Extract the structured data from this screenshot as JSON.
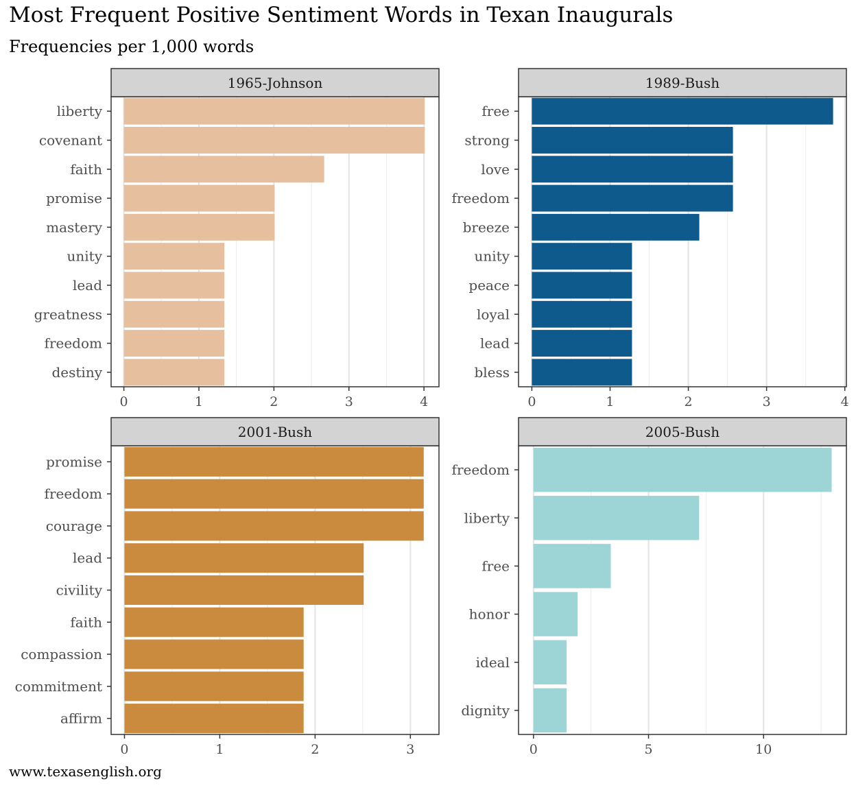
{
  "title": "Most Frequent Positive Sentiment Words in Texan Inaugurals",
  "subtitle": "Frequencies per 1,000 words",
  "caption": "www.texasenglish.org",
  "chart_data": [
    {
      "type": "bar",
      "orientation": "horizontal",
      "panel": "1965-Johnson",
      "color": "#E6BF9F",
      "categories": [
        "liberty",
        "covenant",
        "faith",
        "promise",
        "mastery",
        "unity",
        "lead",
        "greatness",
        "freedom",
        "destiny"
      ],
      "values": [
        4.01,
        4.01,
        2.67,
        2.01,
        2.01,
        1.34,
        1.34,
        1.34,
        1.34,
        1.34
      ],
      "xlim": [
        -0.17,
        4.2
      ],
      "xticks": [
        0,
        1,
        2,
        3,
        4
      ]
    },
    {
      "type": "bar",
      "orientation": "horizontal",
      "panel": "1989-Bush",
      "color": "#0F5A8C",
      "categories": [
        "free",
        "strong",
        "love",
        "freedom",
        "breeze",
        "unity",
        "peace",
        "loyal",
        "lead",
        "bless"
      ],
      "values": [
        3.85,
        2.57,
        2.57,
        2.57,
        2.14,
        1.28,
        1.28,
        1.28,
        1.28,
        1.28
      ],
      "xlim": [
        -0.17,
        4.02
      ],
      "xticks": [
        0,
        1,
        2,
        3,
        4
      ]
    },
    {
      "type": "bar",
      "orientation": "horizontal",
      "panel": "2001-Bush",
      "color": "#CB8B3E",
      "categories": [
        "promise",
        "freedom",
        "courage",
        "lead",
        "civility",
        "faith",
        "compassion",
        "commitment",
        "affirm"
      ],
      "values": [
        3.14,
        3.14,
        3.14,
        2.51,
        2.51,
        1.88,
        1.88,
        1.88,
        1.88
      ],
      "xlim": [
        -0.14,
        3.3
      ],
      "xticks": [
        0,
        1,
        2,
        3
      ]
    },
    {
      "type": "bar",
      "orientation": "horizontal",
      "panel": "2005-Bush",
      "color": "#9DD5D6",
      "categories": [
        "freedom",
        "liberty",
        "free",
        "honor",
        "ideal",
        "dignity"
      ],
      "values": [
        12.96,
        7.2,
        3.36,
        1.92,
        1.44,
        1.44
      ],
      "xlim": [
        -0.65,
        13.6
      ],
      "xticks": [
        0,
        5,
        10
      ]
    }
  ]
}
